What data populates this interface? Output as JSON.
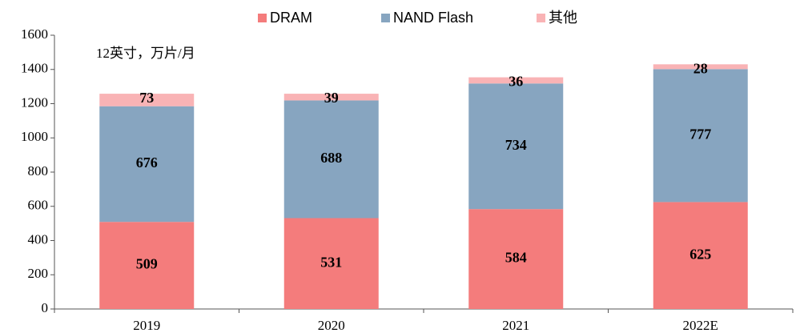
{
  "chart_data": {
    "type": "stacked_bar",
    "annotation": "12英寸，万片/月",
    "categories": [
      "2019",
      "2020",
      "2021",
      "2022E"
    ],
    "series": [
      {
        "name": "DRAM",
        "color": "#f47c7c",
        "values": [
          509,
          531,
          584,
          625
        ]
      },
      {
        "name": "NAND Flash",
        "color": "#87a5c0",
        "values": [
          676,
          688,
          734,
          777
        ]
      },
      {
        "name": "其他",
        "color": "#f9b3b5",
        "values": [
          73,
          39,
          36,
          28
        ]
      }
    ],
    "ylim": [
      0,
      1600
    ],
    "yticks": [
      0,
      200,
      400,
      600,
      800,
      1000,
      1200,
      1400,
      1600
    ],
    "legend": "top"
  }
}
